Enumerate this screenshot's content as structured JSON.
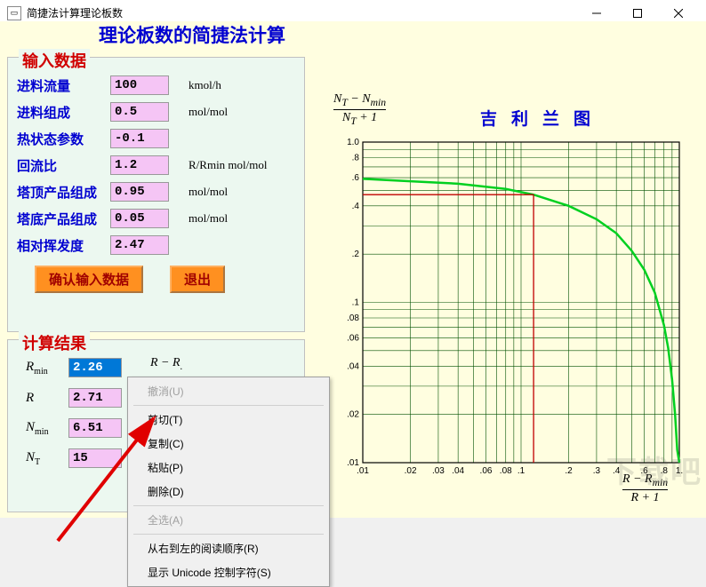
{
  "window": {
    "title": "简捷法计算理论板数"
  },
  "input_panel": {
    "legend": "输入数据",
    "rows": [
      {
        "label": "进料流量",
        "value": "100",
        "unit": "kmol/h"
      },
      {
        "label": "进料组成",
        "value": "0.5",
        "unit": "mol/mol"
      },
      {
        "label": "热状态参数",
        "value": "-0.1",
        "unit": ""
      },
      {
        "label": "回流比",
        "value": "1.2",
        "unit": "R/Rmin mol/mol"
      },
      {
        "label": "塔顶产品组成",
        "value": "0.95",
        "unit": "mol/mol"
      },
      {
        "label": "塔底产品组成",
        "value": "0.05",
        "unit": "mol/mol"
      },
      {
        "label": "相对挥发度",
        "value": "2.47",
        "unit": ""
      }
    ],
    "confirm_btn": "确认输入数据",
    "exit_btn": "退出"
  },
  "result_panel": {
    "legend": "计算结果",
    "rows": [
      {
        "sym": "R",
        "sub": "min",
        "value": "2.26",
        "selected": true
      },
      {
        "sym": "R",
        "sub": "",
        "value": "2.71",
        "selected": false
      },
      {
        "sym": "N",
        "sub": "min",
        "value": "6.51",
        "selected": false
      },
      {
        "sym": "N",
        "sub": "T",
        "value": "15",
        "selected": false
      }
    ],
    "extra_label_sym": "R − R",
    "extra_label_partial": "."
  },
  "right": {
    "title": "理论板数的简捷法计算",
    "chart_label": "吉利兰图",
    "y_formula_top": "N_T − N_min",
    "y_formula_bot": "N_T + 1",
    "x_formula_top": "R − R_min",
    "x_formula_bot": "R + 1"
  },
  "chart": {
    "type": "log-log-line",
    "background": "#fffee0",
    "axis_color": "#000000",
    "grid_color": "#005000",
    "curve_color": "#00d020",
    "curve_width": 2.5,
    "indicator_color": "#c00000",
    "indicator_x": 0.12,
    "indicator_y": 0.47,
    "x_ticks_major": [
      0.01,
      0.1,
      1.0
    ],
    "x_ticks_labels": [
      ".01",
      ".02",
      ".03",
      ".04",
      ".06",
      ".08",
      ".1",
      ".2",
      ".3",
      ".4",
      ".6",
      ".8",
      "1."
    ],
    "y_ticks_labels": [
      "1.0",
      ".8",
      ".6",
      ".4",
      ".2",
      ".1",
      ".08",
      ".06",
      ".04",
      ".02",
      ".01"
    ],
    "xlim": [
      0.01,
      1.0
    ],
    "ylim": [
      0.01,
      1.0
    ],
    "curve_points": [
      [
        0.01,
        0.59
      ],
      [
        0.02,
        0.57
      ],
      [
        0.04,
        0.55
      ],
      [
        0.08,
        0.51
      ],
      [
        0.12,
        0.47
      ],
      [
        0.2,
        0.4
      ],
      [
        0.3,
        0.33
      ],
      [
        0.4,
        0.27
      ],
      [
        0.5,
        0.21
      ],
      [
        0.6,
        0.16
      ],
      [
        0.7,
        0.115
      ],
      [
        0.8,
        0.072
      ],
      [
        0.85,
        0.052
      ],
      [
        0.9,
        0.033
      ],
      [
        0.94,
        0.02
      ],
      [
        0.97,
        0.012
      ],
      [
        1.0,
        0.01
      ]
    ],
    "tick_fontsize": 10
  },
  "context_menu": {
    "items": [
      {
        "label": "撤消(U)",
        "enabled": false
      },
      {
        "sep": true
      },
      {
        "label": "剪切(T)",
        "enabled": true
      },
      {
        "label": "复制(C)",
        "enabled": true
      },
      {
        "label": "粘贴(P)",
        "enabled": true
      },
      {
        "label": "删除(D)",
        "enabled": true
      },
      {
        "sep": true
      },
      {
        "label": "全选(A)",
        "enabled": false
      },
      {
        "sep": true
      },
      {
        "label": "从右到左的阅读顺序(R)",
        "enabled": true
      },
      {
        "label": "显示 Unicode 控制字符(S)",
        "enabled": true
      }
    ]
  },
  "watermark": "下载吧"
}
